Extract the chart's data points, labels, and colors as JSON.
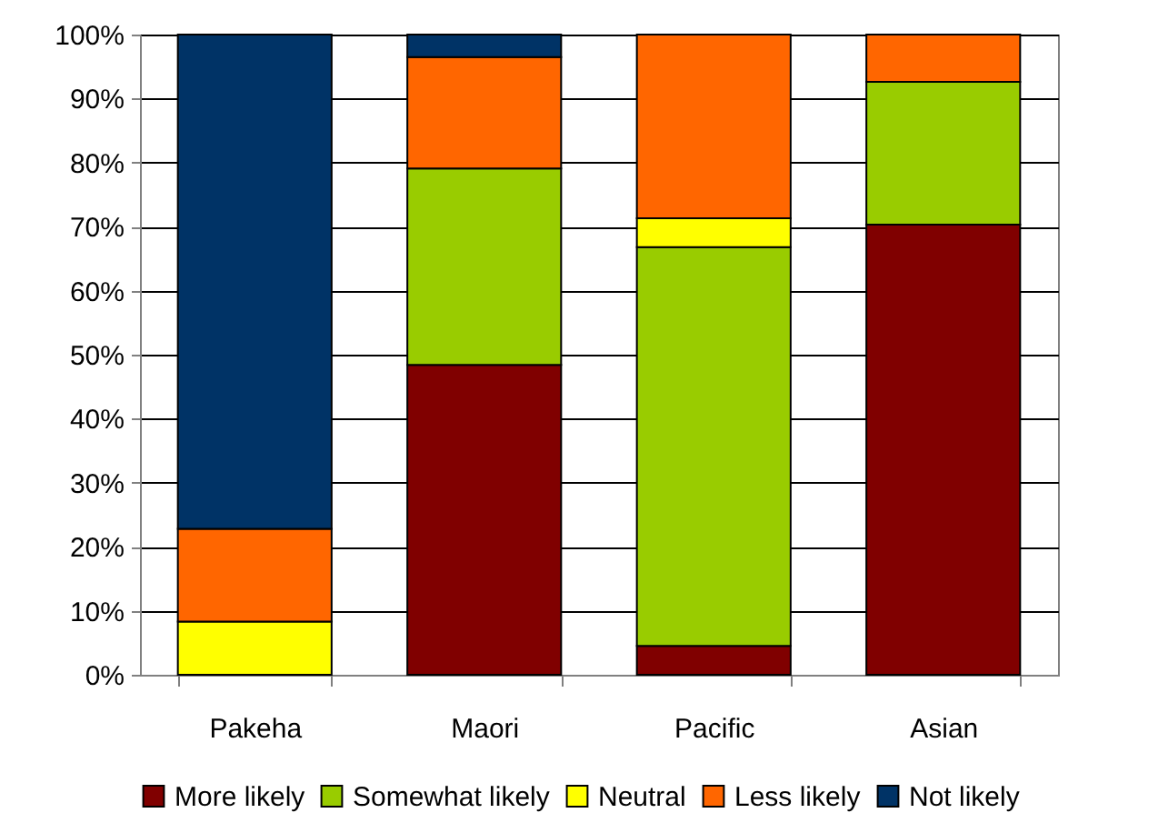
{
  "chart_data": {
    "type": "bar",
    "stacked": true,
    "categories": [
      "Pakeha",
      "Maori",
      "Pacific",
      "Asian"
    ],
    "series": [
      {
        "name": "More likely",
        "color": "#800000",
        "values": [
          null,
          48.4,
          4.5,
          70.3
        ]
      },
      {
        "name": "Somewhat likely",
        "color": "#99cc00",
        "values": [
          null,
          30.7,
          62.3,
          22.3
        ]
      },
      {
        "name": "Neutral",
        "color": "#ffff00",
        "values": [
          8.3,
          null,
          4.5,
          null
        ]
      },
      {
        "name": "Less likely",
        "color": "#ff6600",
        "values": [
          14.5,
          17.4,
          28.7,
          7.4
        ]
      },
      {
        "name": "Not likely",
        "color": "#003366",
        "values": [
          77.2,
          3.5,
          null,
          null
        ]
      }
    ],
    "ylim": [
      0,
      100
    ],
    "yticks": [
      {
        "value": 0,
        "label": "0%"
      },
      {
        "value": 10,
        "label": "10%"
      },
      {
        "value": 20,
        "label": "20%"
      },
      {
        "value": 30,
        "label": "30%"
      },
      {
        "value": 40,
        "label": "40%"
      },
      {
        "value": 50,
        "label": "50%"
      },
      {
        "value": 60,
        "label": "60%"
      },
      {
        "value": 70,
        "label": "70%"
      },
      {
        "value": 80,
        "label": "80%"
      },
      {
        "value": 90,
        "label": "90%"
      },
      {
        "value": 100,
        "label": "100%"
      }
    ],
    "grid": "y",
    "legend": "bottom"
  }
}
